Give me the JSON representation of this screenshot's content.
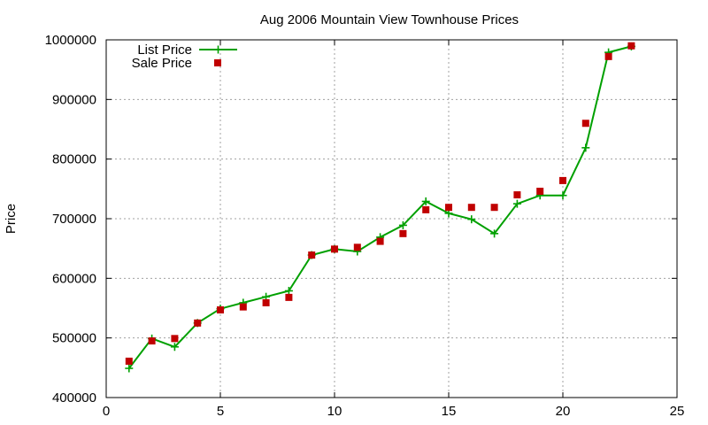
{
  "chart_data": {
    "type": "line",
    "title": "Aug 2006 Mountain View Townhouse Prices",
    "xlabel": "",
    "ylabel": "Price",
    "xlim": [
      0,
      25
    ],
    "ylim": [
      400000,
      1000000
    ],
    "x_ticks": [
      0,
      5,
      10,
      15,
      20,
      25
    ],
    "y_ticks": [
      400000,
      500000,
      600000,
      700000,
      800000,
      900000,
      1000000
    ],
    "grid": true,
    "legend_position": "top-left",
    "series": [
      {
        "name": "List Price",
        "style": "line-with-plus-markers",
        "color": "#00a000",
        "x": [
          1,
          2,
          3,
          4,
          5,
          6,
          7,
          8,
          9,
          10,
          11,
          12,
          13,
          14,
          15,
          16,
          17,
          18,
          19,
          20,
          21,
          22,
          23
        ],
        "values": [
          449000,
          499000,
          485000,
          525000,
          549000,
          559000,
          569000,
          579000,
          639000,
          649000,
          645000,
          669000,
          689000,
          729000,
          709000,
          699000,
          675000,
          725000,
          739000,
          739000,
          819000,
          979000,
          989000
        ]
      },
      {
        "name": "Sale Price",
        "style": "square-markers",
        "color": "#c00000",
        "x": [
          1,
          2,
          3,
          4,
          5,
          6,
          7,
          8,
          9,
          10,
          11,
          12,
          13,
          14,
          15,
          16,
          17,
          18,
          19,
          20,
          21,
          22,
          23
        ],
        "values": [
          461000,
          495000,
          499000,
          525000,
          547000,
          552000,
          559000,
          568000,
          639000,
          649000,
          652000,
          662000,
          675000,
          715000,
          719000,
          719000,
          719000,
          740000,
          746000,
          764000,
          860000,
          972000,
          990000
        ]
      }
    ]
  }
}
